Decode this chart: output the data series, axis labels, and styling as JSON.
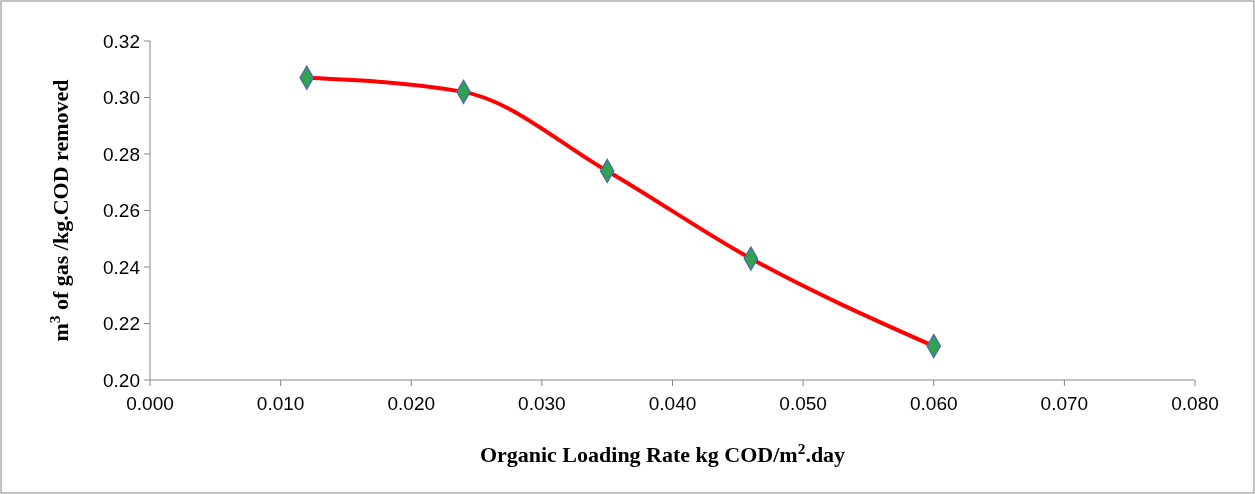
{
  "chart_data": {
    "type": "line",
    "xlabel": "Organic Loading Rate kg COD/m$^{2}$.day",
    "ylabel": "m$^{3}$ of gas /kg.COD removed",
    "x": [
      0.012,
      0.024,
      0.035,
      0.046,
      0.06
    ],
    "series": [
      {
        "color": "#ff0000",
        "colors": [
          "#2ea44f",
          "#2ea44f",
          "#2ea44f",
          "#2ea44f",
          "#2ea44f"
        ],
        "values": [
          0.307,
          0.302,
          0.274,
          0.243,
          0.212
        ]
      }
    ],
    "xlim": [
      0,
      0.08
    ],
    "xticks": [
      {
        "value": 0,
        "label": "0.000"
      },
      {
        "value": 0.01,
        "label": "0.010"
      },
      {
        "value": 0.02,
        "label": "0.020"
      },
      {
        "value": 0.03,
        "label": "0.030"
      },
      {
        "value": 0.04,
        "label": "0.040"
      },
      {
        "value": 0.05,
        "label": "0.050"
      },
      {
        "value": 0.06,
        "label": "0.060"
      },
      {
        "value": 0.07,
        "label": "0.070"
      },
      {
        "value": 0.08,
        "label": "0.080"
      }
    ],
    "ylim": [
      0.2,
      0.32
    ],
    "yticks": [
      {
        "value": 0.2,
        "label": "0.20"
      },
      {
        "value": 0.22,
        "label": "0.22"
      },
      {
        "value": 0.24,
        "label": "0.24"
      },
      {
        "value": 0.26,
        "label": "0.26"
      },
      {
        "value": 0.28,
        "label": "0.28"
      },
      {
        "value": 0.3,
        "label": "0.30"
      },
      {
        "value": 0.32,
        "label": "0.32"
      }
    ],
    "grid": false,
    "marker": "diamond",
    "line_style": "solid"
  }
}
